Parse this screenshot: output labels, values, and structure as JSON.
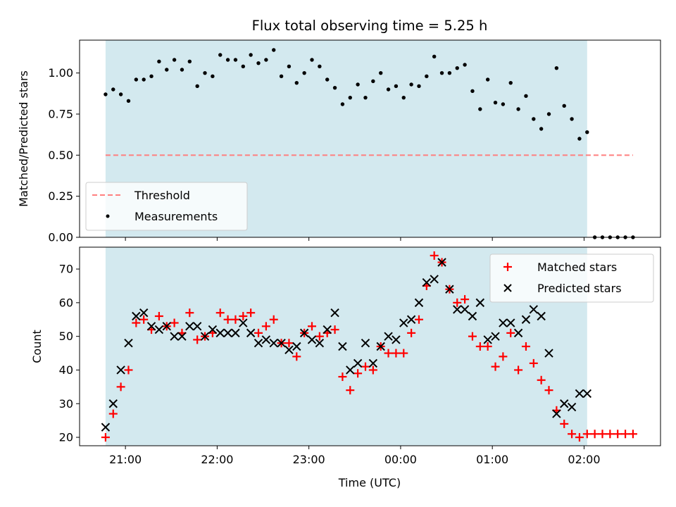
{
  "figure": {
    "title": "Flux total observing time = 5.25 h",
    "xlabel": "Time (UTC)"
  },
  "chart_data": [
    {
      "type": "scatter",
      "ylabel": "Matched/Predicted stars",
      "ylim": [
        0,
        1.2
      ],
      "yticks": [
        0.0,
        0.25,
        0.5,
        0.75,
        1.0
      ],
      "ytick_labels": [
        "0.00",
        "0.25",
        "0.50",
        "0.75",
        "1.00"
      ],
      "xlim": [
        "20:30",
        "02:50"
      ],
      "xticks": [
        "21:00",
        "22:00",
        "23:00",
        "00:00",
        "01:00",
        "02:00"
      ],
      "observing_window": [
        "20:47",
        "02:02"
      ],
      "observing_window_color": "#d3e9ef",
      "legend_position": "lower-left",
      "threshold": {
        "name": "Threshold",
        "value": 0.5,
        "x": [
          "20:47",
          "02:32"
        ],
        "color": "#ff7f7f"
      },
      "series": [
        {
          "name": "Measurements",
          "color": "#000000",
          "x": [
            "20:47",
            "20:52",
            "20:57",
            "21:02",
            "21:07",
            "21:12",
            "21:17",
            "21:22",
            "21:27",
            "21:32",
            "21:37",
            "21:42",
            "21:47",
            "21:52",
            "21:57",
            "22:02",
            "22:07",
            "22:12",
            "22:17",
            "22:22",
            "22:27",
            "22:32",
            "22:37",
            "22:42",
            "22:47",
            "22:52",
            "22:57",
            "23:02",
            "23:07",
            "23:12",
            "23:17",
            "23:22",
            "23:27",
            "23:32",
            "23:37",
            "23:42",
            "23:47",
            "23:52",
            "23:57",
            "00:02",
            "00:07",
            "00:12",
            "00:17",
            "00:22",
            "00:27",
            "00:32",
            "00:37",
            "00:42",
            "00:47",
            "00:52",
            "00:57",
            "01:02",
            "01:07",
            "01:12",
            "01:17",
            "01:22",
            "01:27",
            "01:32",
            "01:37",
            "01:42",
            "01:47",
            "01:52",
            "01:57",
            "02:02",
            "02:07",
            "02:12",
            "02:17",
            "02:22",
            "02:27",
            "02:32"
          ],
          "y": [
            0.87,
            0.9,
            0.87,
            0.83,
            0.96,
            0.96,
            0.98,
            1.07,
            1.02,
            1.08,
            1.02,
            1.07,
            0.92,
            1.0,
            0.98,
            1.11,
            1.08,
            1.08,
            1.04,
            1.11,
            1.06,
            1.08,
            1.14,
            0.98,
            1.04,
            0.94,
            1.0,
            1.08,
            1.04,
            0.96,
            0.91,
            0.81,
            0.85,
            0.93,
            0.85,
            0.95,
            1.0,
            0.9,
            0.92,
            0.85,
            0.93,
            0.92,
            0.98,
            1.1,
            1.0,
            1.0,
            1.03,
            1.05,
            0.89,
            0.78,
            0.96,
            0.82,
            0.81,
            0.94,
            0.78,
            0.86,
            0.72,
            0.66,
            0.75,
            1.03,
            0.8,
            0.72,
            0.6,
            0.64,
            0.0,
            0.0,
            0.0,
            0.0,
            0.0,
            0.0
          ]
        }
      ]
    },
    {
      "type": "scatter",
      "ylabel": "Count",
      "ylim": [
        17.5,
        76.5
      ],
      "yticks": [
        20,
        30,
        40,
        50,
        60,
        70
      ],
      "ytick_labels": [
        "20",
        "30",
        "40",
        "50",
        "60",
        "70"
      ],
      "xlim": [
        "20:30",
        "02:50"
      ],
      "xticks": [
        "21:00",
        "22:00",
        "23:00",
        "00:00",
        "01:00",
        "02:00"
      ],
      "xtick_labels": [
        "21:00",
        "22:00",
        "23:00",
        "00:00",
        "01:00",
        "02:00"
      ],
      "observing_window": [
        "20:47",
        "02:02"
      ],
      "observing_window_color": "#d3e9ef",
      "legend_position": "top-right",
      "series": [
        {
          "name": "Matched stars",
          "marker": "plus",
          "color": "#ff0000",
          "x": [
            "20:47",
            "20:52",
            "20:57",
            "21:02",
            "21:07",
            "21:12",
            "21:17",
            "21:22",
            "21:27",
            "21:32",
            "21:37",
            "21:42",
            "21:47",
            "21:52",
            "21:57",
            "22:02",
            "22:07",
            "22:12",
            "22:17",
            "22:22",
            "22:27",
            "22:32",
            "22:37",
            "22:42",
            "22:47",
            "22:52",
            "22:57",
            "23:02",
            "23:07",
            "23:12",
            "23:17",
            "23:22",
            "23:27",
            "23:32",
            "23:37",
            "23:42",
            "23:47",
            "23:52",
            "23:57",
            "00:02",
            "00:07",
            "00:12",
            "00:17",
            "00:22",
            "00:27",
            "00:32",
            "00:37",
            "00:42",
            "00:47",
            "00:52",
            "00:57",
            "01:02",
            "01:07",
            "01:12",
            "01:17",
            "01:22",
            "01:27",
            "01:32",
            "01:37",
            "01:42",
            "01:47",
            "01:52",
            "01:57",
            "02:02",
            "02:07",
            "02:12",
            "02:17",
            "02:22",
            "02:27",
            "02:32"
          ],
          "y": [
            20,
            27,
            35,
            40,
            54,
            55,
            52,
            56,
            53,
            54,
            51,
            57,
            49,
            50,
            51,
            57,
            55,
            55,
            56,
            57,
            51,
            53,
            55,
            48,
            48,
            44,
            51,
            53,
            50,
            51,
            52,
            38,
            34,
            39,
            41,
            40,
            47,
            45,
            45,
            45,
            51,
            55,
            65,
            74,
            72,
            64,
            60,
            61,
            50,
            47,
            47,
            41,
            44,
            51,
            40,
            47,
            42,
            37,
            34,
            28,
            24,
            21,
            20,
            21,
            21,
            21,
            21,
            21,
            21,
            21
          ]
        },
        {
          "name": "Predicted stars",
          "marker": "x",
          "color": "#000000",
          "x": [
            "20:47",
            "20:52",
            "20:57",
            "21:02",
            "21:07",
            "21:12",
            "21:17",
            "21:22",
            "21:27",
            "21:32",
            "21:37",
            "21:42",
            "21:47",
            "21:52",
            "21:57",
            "22:02",
            "22:07",
            "22:12",
            "22:17",
            "22:22",
            "22:27",
            "22:32",
            "22:37",
            "22:42",
            "22:47",
            "22:52",
            "22:57",
            "23:02",
            "23:07",
            "23:12",
            "23:17",
            "23:22",
            "23:27",
            "23:32",
            "23:37",
            "23:42",
            "23:47",
            "23:52",
            "23:57",
            "00:02",
            "00:07",
            "00:12",
            "00:17",
            "00:22",
            "00:27",
            "00:32",
            "00:37",
            "00:42",
            "00:47",
            "00:52",
            "00:57",
            "01:02",
            "01:07",
            "01:12",
            "01:17",
            "01:22",
            "01:27",
            "01:32",
            "01:37",
            "01:42",
            "01:47",
            "01:52",
            "01:57",
            "02:02"
          ],
          "y": [
            23,
            30,
            40,
            48,
            56,
            57,
            53,
            52,
            53,
            50,
            50,
            53,
            53,
            50,
            52,
            51,
            51,
            51,
            54,
            51,
            48,
            49,
            48,
            48,
            46,
            47,
            51,
            49,
            48,
            52,
            57,
            47,
            40,
            42,
            48,
            42,
            47,
            50,
            49,
            54,
            55,
            60,
            66,
            67,
            72,
            64,
            58,
            58,
            56,
            60,
            49,
            50,
            54,
            54,
            51,
            55,
            58,
            56,
            45,
            27,
            30,
            29,
            33,
            33
          ]
        }
      ]
    }
  ]
}
